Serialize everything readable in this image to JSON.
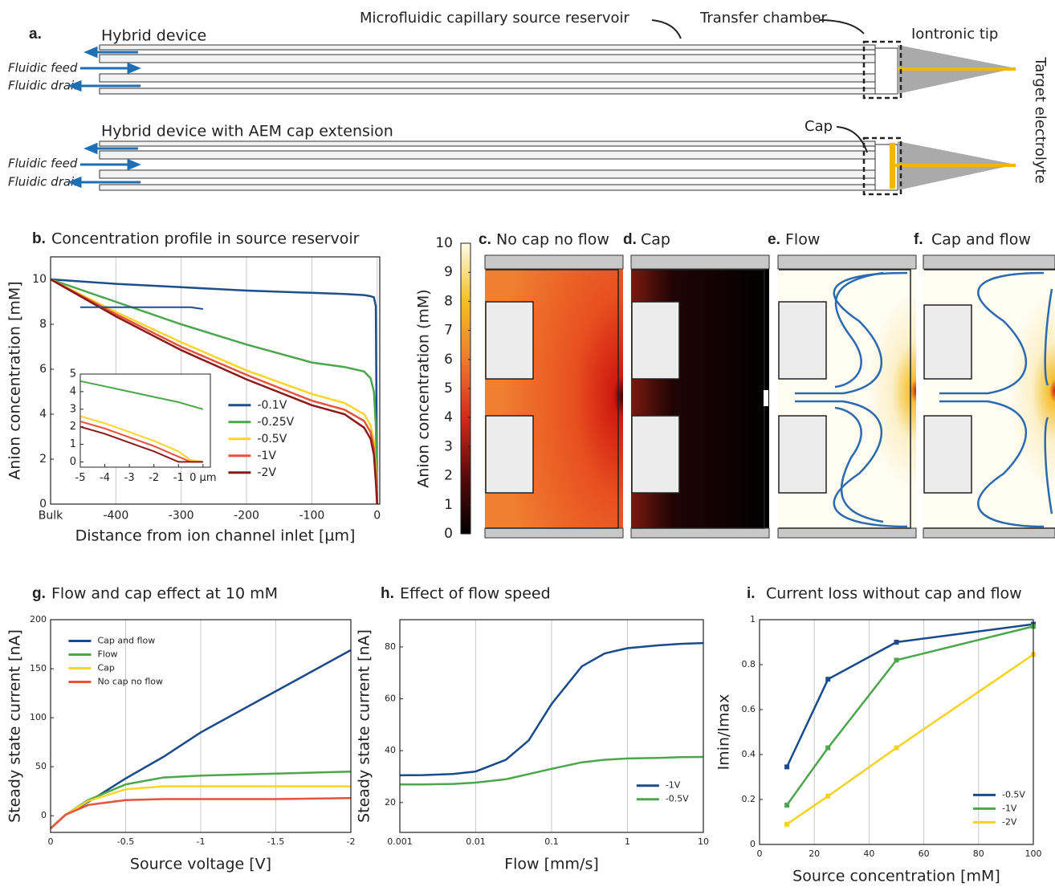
{
  "panel_a": {
    "label": "a.",
    "device1": "Hybrid device",
    "reservoir": "Microfluidic capillary source reservoir",
    "chamber": "Transfer chamber",
    "tip": "Iontronic tip",
    "target": "Target electrolyte",
    "feed1": "Fluidic feed",
    "drain1": "Fluidic drain",
    "device2": "Hybrid device with AEM cap extension",
    "cap": "Cap",
    "feed2": "Fluidic feed",
    "drain2": "Fluidic drain"
  },
  "panels": [
    {
      "label": "c.",
      "title": "No cap no flow"
    },
    {
      "label": "d.",
      "title": "Cap"
    },
    {
      "label": "e.",
      "title": "Flow"
    },
    {
      "label": "f.",
      "title": "Cap and flow"
    }
  ],
  "chart_data": [
    {
      "type": "line",
      "panel_label": "b.",
      "title": "Concentration profile in source reservoir",
      "xlabel": "Distance from ion channel inlet [µm]",
      "ylabel": "Anion concentration [mM]",
      "x": [
        -500,
        -400,
        -300,
        -200,
        -100,
        -50,
        -20,
        -10,
        -5,
        -2,
        0
      ],
      "series": [
        {
          "name": "-0.1V",
          "color": "#1f4e8c",
          "values": [
            10,
            9.8,
            9.65,
            9.5,
            9.4,
            9.35,
            9.3,
            9.25,
            9.2,
            8.8,
            0
          ]
        },
        {
          "name": "-0.25V",
          "color": "#4ca64c",
          "values": [
            10,
            9.0,
            8.0,
            7.1,
            6.3,
            6.1,
            5.9,
            5.6,
            5.0,
            3.5,
            0
          ]
        },
        {
          "name": "-0.5V",
          "color": "#ffd42a",
          "values": [
            10,
            8.55,
            7.2,
            5.95,
            4.9,
            4.5,
            4.0,
            3.5,
            2.8,
            1.5,
            0
          ]
        },
        {
          "name": "-1V",
          "color": "#e5533c",
          "values": [
            10,
            8.45,
            7.0,
            5.75,
            4.6,
            4.2,
            3.7,
            3.2,
            2.5,
            1.2,
            0
          ]
        },
        {
          "name": "-2V",
          "color": "#8b1a1a",
          "values": [
            10,
            8.35,
            6.85,
            5.55,
            4.4,
            4.0,
            3.4,
            2.9,
            2.2,
            1.0,
            0
          ]
        }
      ],
      "xlim": [
        -500,
        4
      ],
      "xticks": [
        {
          "value": -500,
          "label": "Bulk"
        },
        -400,
        -300,
        -200,
        -100,
        0
      ],
      "ylim": [
        0,
        11
      ],
      "yticks": [
        0,
        2,
        4,
        6,
        8,
        10
      ],
      "grid": "x",
      "legend": "center-right",
      "inset": {
        "x": [
          -5,
          -4,
          -3,
          -2,
          -1,
          -0.5,
          0
        ],
        "series": [
          {
            "values": [
              8.8,
              8.8,
              8.8,
              8.8,
              8.8,
              8.8,
              8.7
            ]
          },
          {
            "values": [
              4.6,
              4.3,
              4.0,
              3.7,
              3.4,
              3.2,
              3.0
            ]
          },
          {
            "values": [
              2.6,
              2.2,
              1.7,
              1.2,
              0.6,
              0.1,
              0
            ]
          },
          {
            "values": [
              2.3,
              1.9,
              1.4,
              0.9,
              0.3,
              0,
              0
            ]
          },
          {
            "values": [
              2.0,
              1.6,
              1.1,
              0.6,
              0,
              0,
              0
            ]
          }
        ],
        "xlim": [
          -5,
          0.3
        ],
        "xticks": [
          -5,
          -4,
          -3,
          -2,
          -1,
          {
            "value": 0,
            "label": "0 µm"
          }
        ],
        "ylim": [
          -0.3,
          5
        ],
        "yticks": [
          0,
          1,
          2,
          3,
          4,
          5
        ]
      }
    },
    {
      "type": "colorbar",
      "ylabel": "Anion concentration (mM)",
      "ylim": [
        0,
        10
      ],
      "yticks": [
        0,
        1,
        2,
        3,
        4,
        5,
        6,
        7,
        8,
        9,
        10
      ],
      "colors": [
        "#000000",
        "#5a0a0a",
        "#d42a1c",
        "#ee7a30",
        "#f2c020",
        "#fffbe8"
      ]
    },
    {
      "type": "line",
      "panel_label": "g.",
      "title": "Flow and cap effect at 10 mM",
      "xlabel": "Source voltage [V]",
      "ylabel": "Steady state current [nA]",
      "x": [
        0,
        -0.1,
        -0.25,
        -0.5,
        -0.75,
        -1,
        -1.5,
        -2
      ],
      "series": [
        {
          "name": "Cap and flow",
          "color": "#1a4a8a",
          "values": [
            -13,
            1,
            14,
            38,
            60,
            85,
            127,
            169
          ]
        },
        {
          "name": "Flow",
          "color": "#4ca64c",
          "values": [
            -13,
            1,
            16,
            32,
            39,
            41,
            43,
            45
          ]
        },
        {
          "name": "Cap",
          "color": "#ffd42a",
          "values": [
            -13,
            1,
            15,
            27,
            30,
            30,
            30,
            30
          ]
        },
        {
          "name": "No cap no flow",
          "color": "#e5533c",
          "values": [
            -13,
            1,
            11,
            16,
            17,
            17,
            17,
            18
          ]
        }
      ],
      "xlim": [
        0,
        -2
      ],
      "xticks": [
        0,
        -0.5,
        -1,
        -1.5,
        -2
      ],
      "ylim": [
        -17,
        200
      ],
      "yticks": [
        0,
        50,
        100,
        150,
        200
      ],
      "grid": "x",
      "legend": "upper-left"
    },
    {
      "type": "line",
      "panel_label": "h.",
      "title": "Effect of flow speed",
      "xlabel": "Flow [mm/s]",
      "ylabel": "Steady state current [nA]",
      "log_x": true,
      "x": [
        0.001,
        0.002,
        0.005,
        0.01,
        0.025,
        0.05,
        0.1,
        0.25,
        0.5,
        1,
        2.5,
        5,
        10
      ],
      "series": [
        {
          "name": "-1V",
          "color": "#1a4a8a",
          "values": [
            30.5,
            30.6,
            31,
            32,
            36.5,
            44,
            58,
            72.5,
            77.5,
            79.5,
            80.6,
            81.2,
            81.5
          ]
        },
        {
          "name": "-0.5V",
          "color": "#4ca64c",
          "values": [
            27,
            27,
            27.2,
            27.7,
            29,
            31,
            33,
            35.5,
            36.5,
            37,
            37.2,
            37.5,
            37.6
          ]
        }
      ],
      "xlim": [
        0.001,
        10
      ],
      "xticks": [
        0.001,
        0.01,
        0.1,
        1,
        10
      ],
      "ylim": [
        8.5,
        90.5
      ],
      "yticks": [
        20,
        40,
        60,
        80
      ],
      "grid": "x",
      "legend": "lower-right"
    },
    {
      "type": "line",
      "panel_label": "i.",
      "title": "Current loss without cap and flow",
      "xlabel": "Source concentration [mM]",
      "ylabel": "Imin/Imax",
      "markers": true,
      "x": [
        10,
        25,
        50,
        100
      ],
      "series": [
        {
          "name": "-0.5V",
          "color": "#1a4a8a",
          "values": [
            0.345,
            0.735,
            0.9,
            0.98
          ]
        },
        {
          "name": "-1V",
          "color": "#4ca64c",
          "values": [
            0.175,
            0.43,
            0.82,
            0.97
          ]
        },
        {
          "name": "-2V",
          "color": "#f5d21f",
          "values": [
            0.09,
            0.215,
            0.43,
            0.845
          ]
        }
      ],
      "xlim": [
        0,
        100
      ],
      "xticks": [
        0,
        20,
        40,
        60,
        80,
        100
      ],
      "ylim": [
        0,
        1
      ],
      "yticks": [
        0,
        0.2,
        0.4,
        0.6,
        0.8,
        1
      ],
      "grid": "x",
      "legend": "lower-right"
    }
  ]
}
